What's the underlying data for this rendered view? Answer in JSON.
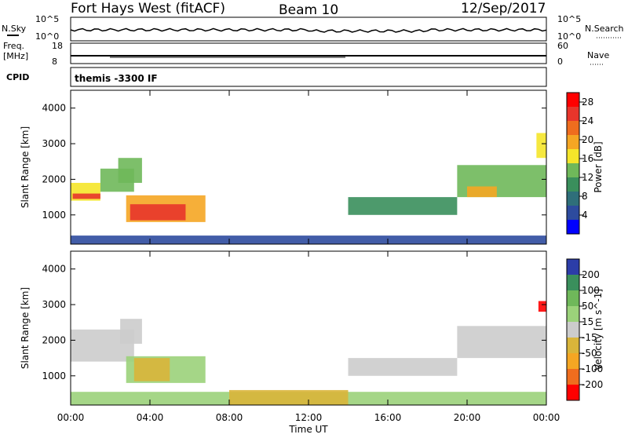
{
  "header": {
    "station": "Fort Hays West (fitACF)",
    "beam": "Beam 10",
    "date": "12/Sep/2017"
  },
  "status_panels": {
    "nsky": {
      "label": "N.Sky",
      "ticks": [
        "10^5",
        "10^0"
      ]
    },
    "nsearch": {
      "label": "N.Search",
      "ticks": [
        "10^5",
        "10^0"
      ]
    },
    "freq": {
      "label_line1": "Freq.",
      "label_line2": "[MHz]",
      "ticks": [
        "18",
        "8"
      ]
    },
    "nave": {
      "label": "Nave",
      "ticks": [
        "60",
        "0"
      ]
    },
    "cpid": {
      "label": "CPID",
      "value": "themis -3300 IF"
    }
  },
  "colors": {
    "power_scale": [
      "#0000ff",
      "#2d4b9e",
      "#2f6f7a",
      "#3a8f5c",
      "#6fb85a",
      "#f5e52a",
      "#f5a623",
      "#ef6d1e",
      "#e8352b",
      "#ff0000"
    ],
    "velocity_scale": [
      "#2c3da8",
      "#3a8f5c",
      "#6fb85a",
      "#9bd27a",
      "#cccccc",
      "#d9b53a",
      "#f5a623",
      "#ef6d1e",
      "#ff0000"
    ],
    "ground_scatter": "#bebebe"
  },
  "chart_data": [
    {
      "type": "heatmap",
      "name": "power",
      "ylabel": "Slant Range [km]",
      "ylim": [
        180,
        4500
      ],
      "yticks": [
        "1000",
        "2000",
        "3000",
        "4000"
      ],
      "xlim": [
        "00:00",
        "24:00"
      ],
      "colorbar": {
        "label": "Power [dB]",
        "ticks": [
          "4",
          "8",
          "12",
          "16",
          "20",
          "24",
          "28"
        ],
        "range": [
          0,
          30
        ]
      },
      "regions": [
        {
          "t0": 0.0,
          "t1": 24.0,
          "r0": 190,
          "r1": 420,
          "value": 5
        },
        {
          "t0": 0.0,
          "t1": 1.5,
          "r0": 1400,
          "r1": 1900,
          "value": 16
        },
        {
          "t0": 0.1,
          "t1": 1.5,
          "r0": 1450,
          "r1": 1600,
          "value": 24
        },
        {
          "t0": 1.5,
          "t1": 3.2,
          "r0": 1650,
          "r1": 2300,
          "value": 14
        },
        {
          "t0": 2.4,
          "t1": 3.6,
          "r0": 1900,
          "r1": 2600,
          "value": 12
        },
        {
          "t0": 2.8,
          "t1": 6.8,
          "r0": 800,
          "r1": 1550,
          "value": 18
        },
        {
          "t0": 3.0,
          "t1": 5.8,
          "r0": 850,
          "r1": 1300,
          "value": 26
        },
        {
          "t0": 14.0,
          "t1": 19.5,
          "r0": 1000,
          "r1": 1500,
          "value": 10
        },
        {
          "t0": 19.5,
          "t1": 24.0,
          "r0": 1500,
          "r1": 2400,
          "value": 12
        },
        {
          "t0": 20.0,
          "t1": 21.5,
          "r0": 1500,
          "r1": 1800,
          "value": 20
        },
        {
          "t0": 23.5,
          "t1": 24.0,
          "r0": 2600,
          "r1": 3300,
          "value": 16
        }
      ]
    },
    {
      "type": "heatmap",
      "name": "velocity",
      "ylabel": "Slant Range [km]",
      "ylim": [
        180,
        4500
      ],
      "yticks": [
        "1000",
        "2000",
        "3000",
        "4000"
      ],
      "xlim": [
        "00:00",
        "24:00"
      ],
      "xticks": [
        "00:00",
        "04:00",
        "08:00",
        "12:00",
        "16:00",
        "20:00",
        "00:00"
      ],
      "xlabel": "Time UT",
      "colorbar": {
        "label": "Velocity [m s^-1]",
        "ticks": [
          "200",
          "100",
          "50",
          "15",
          "-15",
          "-50",
          "-100",
          "-200"
        ],
        "range": [
          -250,
          250
        ]
      },
      "regions": [
        {
          "t0": 0.0,
          "t1": 24.0,
          "r0": 190,
          "r1": 550,
          "value": 40
        },
        {
          "t0": 8.0,
          "t1": 14.0,
          "r0": 190,
          "r1": 600,
          "value": -30
        },
        {
          "t0": 0.0,
          "t1": 3.2,
          "r0": 1400,
          "r1": 2300,
          "value": 0
        },
        {
          "t0": 2.5,
          "t1": 3.6,
          "r0": 1900,
          "r1": 2600,
          "value": 0
        },
        {
          "t0": 2.8,
          "t1": 6.8,
          "r0": 800,
          "r1": 1550,
          "value": 40
        },
        {
          "t0": 3.2,
          "t1": 5.0,
          "r0": 850,
          "r1": 1500,
          "value": -40
        },
        {
          "t0": 14.0,
          "t1": 19.5,
          "r0": 1000,
          "r1": 1500,
          "value": 0
        },
        {
          "t0": 19.5,
          "t1": 24.0,
          "r0": 1500,
          "r1": 2400,
          "value": 0
        },
        {
          "t0": 23.6,
          "t1": 24.0,
          "r0": 2800,
          "r1": 3100,
          "value": -220
        }
      ]
    }
  ]
}
